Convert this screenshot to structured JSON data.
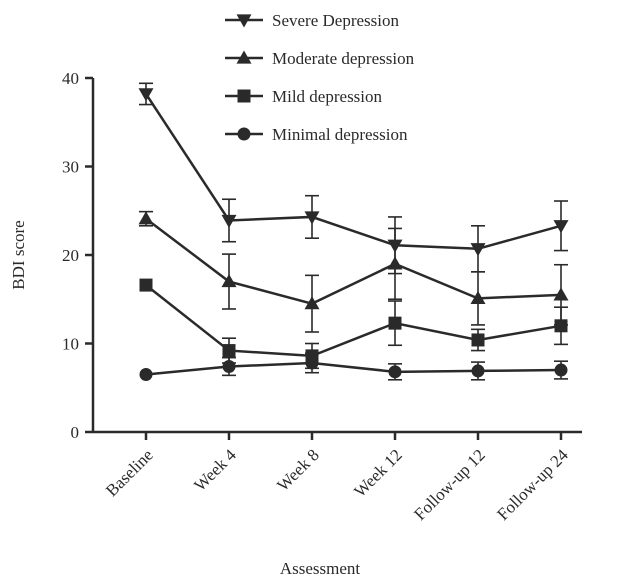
{
  "chart_data": {
    "type": "line",
    "xlabel": "Assessment",
    "ylabel": "BDI score",
    "ylim": [
      0,
      40
    ],
    "yticks": [
      0,
      10,
      20,
      30,
      40
    ],
    "categories": [
      "Baseline",
      "Week 4",
      "Week 8",
      "Week 12",
      "Follow-up 12",
      "Follow-up 24"
    ],
    "grid": false,
    "legend_position": "top",
    "series": [
      {
        "name": "Severe Depression",
        "marker": "triangle-down",
        "values": [
          38.2,
          23.9,
          24.3,
          21.1,
          20.7,
          23.3
        ],
        "error": [
          1.2,
          2.4,
          2.4,
          3.2,
          2.6,
          2.8
        ]
      },
      {
        "name": "Moderate depression",
        "marker": "triangle-up",
        "values": [
          24.1,
          17.0,
          14.5,
          19.0,
          15.1,
          15.5
        ],
        "error": [
          0.8,
          3.1,
          3.2,
          4.0,
          3.0,
          3.4
        ]
      },
      {
        "name": "Mild depression",
        "marker": "square",
        "values": [
          16.6,
          9.2,
          8.6,
          12.3,
          10.4,
          12.0
        ],
        "error": [
          0,
          1.4,
          1.4,
          2.5,
          1.2,
          2.1
        ]
      },
      {
        "name": "Minimal depression",
        "marker": "circle",
        "values": [
          6.5,
          7.4,
          7.8,
          6.8,
          6.9,
          7.0
        ],
        "error": [
          0,
          1.0,
          1.1,
          0.9,
          1.0,
          1.0
        ]
      }
    ],
    "colors": {
      "line": "#2a2a2a"
    }
  }
}
